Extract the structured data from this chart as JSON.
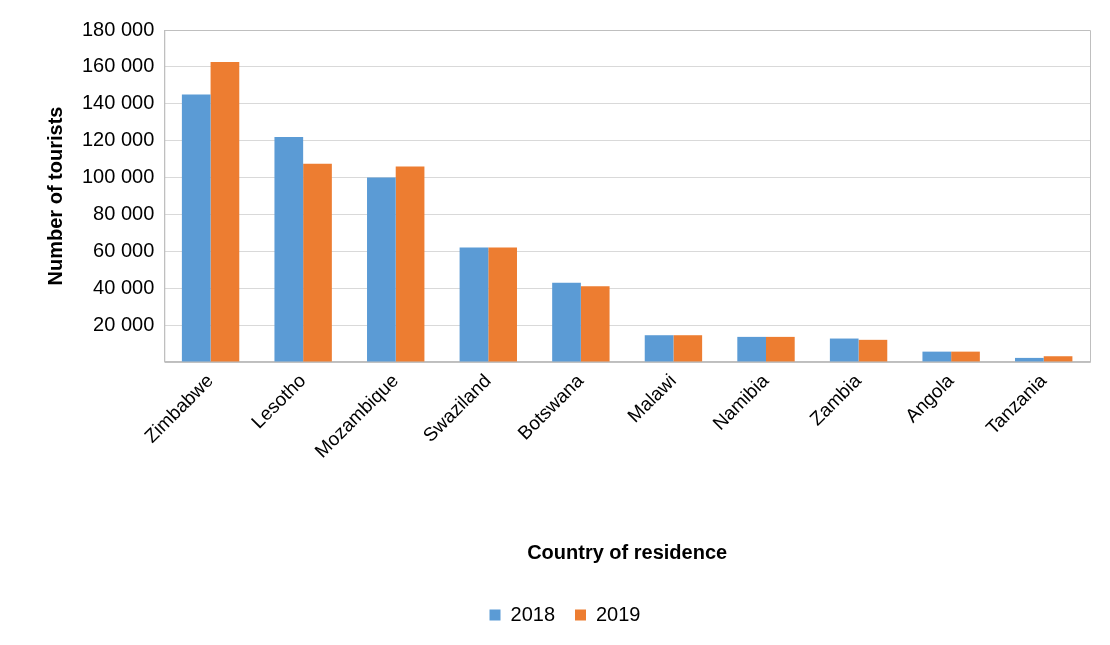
{
  "chart_data": {
    "type": "bar",
    "xlabel": "Country of residence",
    "ylabel": "Number of tourists",
    "categories": [
      "Zimbabwe",
      "Lesotho",
      "Mozambique",
      "Swaziland",
      "Botswana",
      "Malawi",
      "Namibia",
      "Zambia",
      "Angola",
      "Tanzania"
    ],
    "series": [
      {
        "name": "2018",
        "color": "#5b9bd5",
        "values": [
          145000,
          122000,
          100000,
          62000,
          43000,
          14500,
          13600,
          12700,
          5600,
          2200
        ]
      },
      {
        "name": "2019",
        "color": "#ed7d31",
        "values": [
          162600,
          107500,
          106000,
          62000,
          41000,
          14500,
          13600,
          12000,
          5600,
          3100
        ]
      }
    ],
    "ylim": [
      0,
      180000
    ],
    "yticks": [
      {
        "value": 0,
        "label": null
      },
      {
        "value": 20000,
        "label": "20 000"
      },
      {
        "value": 40000,
        "label": "40 000"
      },
      {
        "value": 60000,
        "label": "60 000"
      },
      {
        "value": 80000,
        "label": "80 000"
      },
      {
        "value": 100000,
        "label": "100 000"
      },
      {
        "value": 120000,
        "label": "120 000"
      },
      {
        "value": 140000,
        "label": "140 000"
      },
      {
        "value": 160000,
        "label": "160 000"
      },
      {
        "value": 180000,
        "label": "180 000"
      }
    ],
    "grid": "y",
    "legend": "bottom"
  }
}
